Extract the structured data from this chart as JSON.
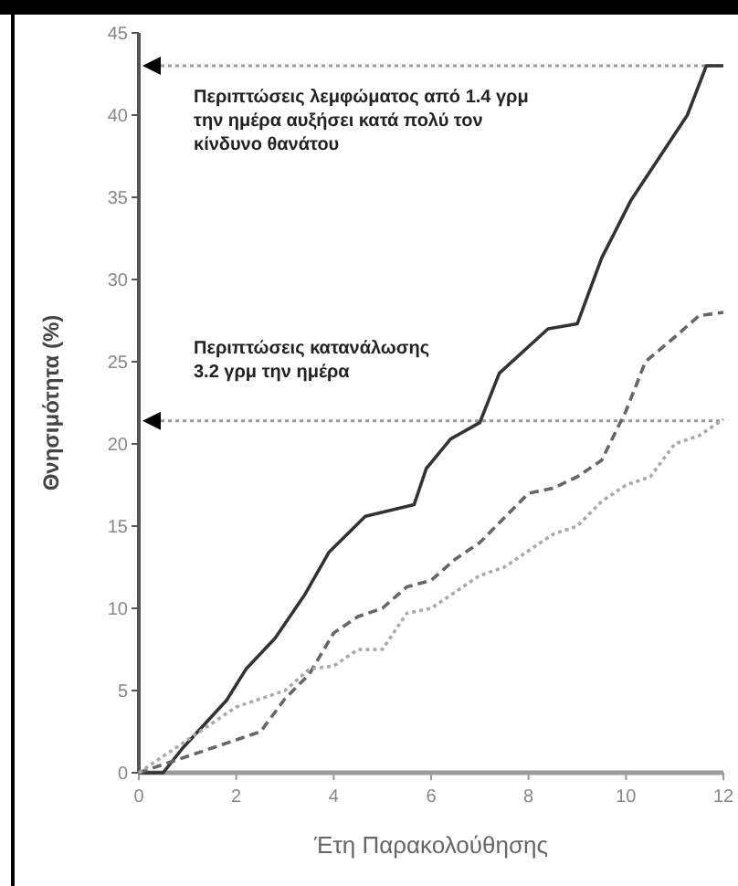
{
  "chart_data": {
    "type": "line",
    "xlabel": "Έτη Παρακολούθησης",
    "ylabel": "Θνησιμότητα (%)",
    "xlim": [
      0,
      12
    ],
    "xticks": [
      0,
      2,
      4,
      6,
      8,
      10,
      12
    ],
    "ylim": [
      0,
      45
    ],
    "yticks": [
      0,
      5,
      10,
      15,
      20,
      25,
      30,
      35,
      40,
      45
    ],
    "marker": "none",
    "ref_lines": [
      {
        "axis": "y",
        "value": 43,
        "label": "Περιπτώσεις λεμφώματος από 1.4 γρμ την ημέρα αυξήσει κατά πολύ τον κίνδυνο θανάτου",
        "color": "#999999",
        "line_style": "dotted"
      },
      {
        "axis": "y",
        "value": 21.4,
        "label": "Περιπτώσεις κατανάλωσης 3.2 γρμ την ημέρα",
        "color": "#999999",
        "line_style": "dotted"
      }
    ],
    "series": [
      {
        "color": "#333333",
        "line_style": "solid",
        "x": [
          0,
          0.5,
          0.9,
          1.8,
          2.2,
          2.8,
          3.4,
          3.9,
          4.65,
          5.65,
          5.9,
          6.4,
          7,
          7.4,
          8.4,
          9,
          9.5,
          10.1,
          11.26,
          11.65,
          12
        ],
        "values": [
          0,
          0,
          1.5,
          4.4,
          6.3,
          8.2,
          10.8,
          13.4,
          15.6,
          16.3,
          18.5,
          20.3,
          21.3,
          24.3,
          27,
          27.3,
          31.3,
          34.8,
          40,
          43,
          43
        ]
      },
      {
        "color": "#666666",
        "line_style": "dashed",
        "x": [
          0,
          1,
          2,
          2.5,
          3,
          3.5,
          4,
          4.5,
          5,
          5.5,
          6,
          6.5,
          7,
          7.5,
          8,
          8.5,
          9,
          9.5,
          10,
          10.4,
          11,
          11.5,
          12
        ],
        "values": [
          0,
          1,
          2,
          2.5,
          4.5,
          6,
          8.5,
          9.5,
          10,
          11.3,
          11.7,
          13,
          14,
          15.5,
          17,
          17.3,
          18,
          19,
          22,
          25,
          26.5,
          27.8,
          28
        ]
      },
      {
        "color": "#aaaaaa",
        "line_style": "dotted",
        "x": [
          0,
          1,
          1.5,
          2,
          2.5,
          3,
          3.5,
          4,
          4.5,
          5,
          5.5,
          6,
          6.5,
          7,
          7.5,
          8,
          8.5,
          9,
          9.5,
          10,
          10.5,
          11,
          11.5,
          12
        ],
        "values": [
          0,
          2,
          3,
          4,
          4.5,
          5,
          6.3,
          6.5,
          7.5,
          7.5,
          9.7,
          10,
          11,
          12,
          12.5,
          13.5,
          14.5,
          15,
          16.5,
          17.5,
          18,
          20,
          20.5,
          21.5
        ]
      }
    ]
  }
}
